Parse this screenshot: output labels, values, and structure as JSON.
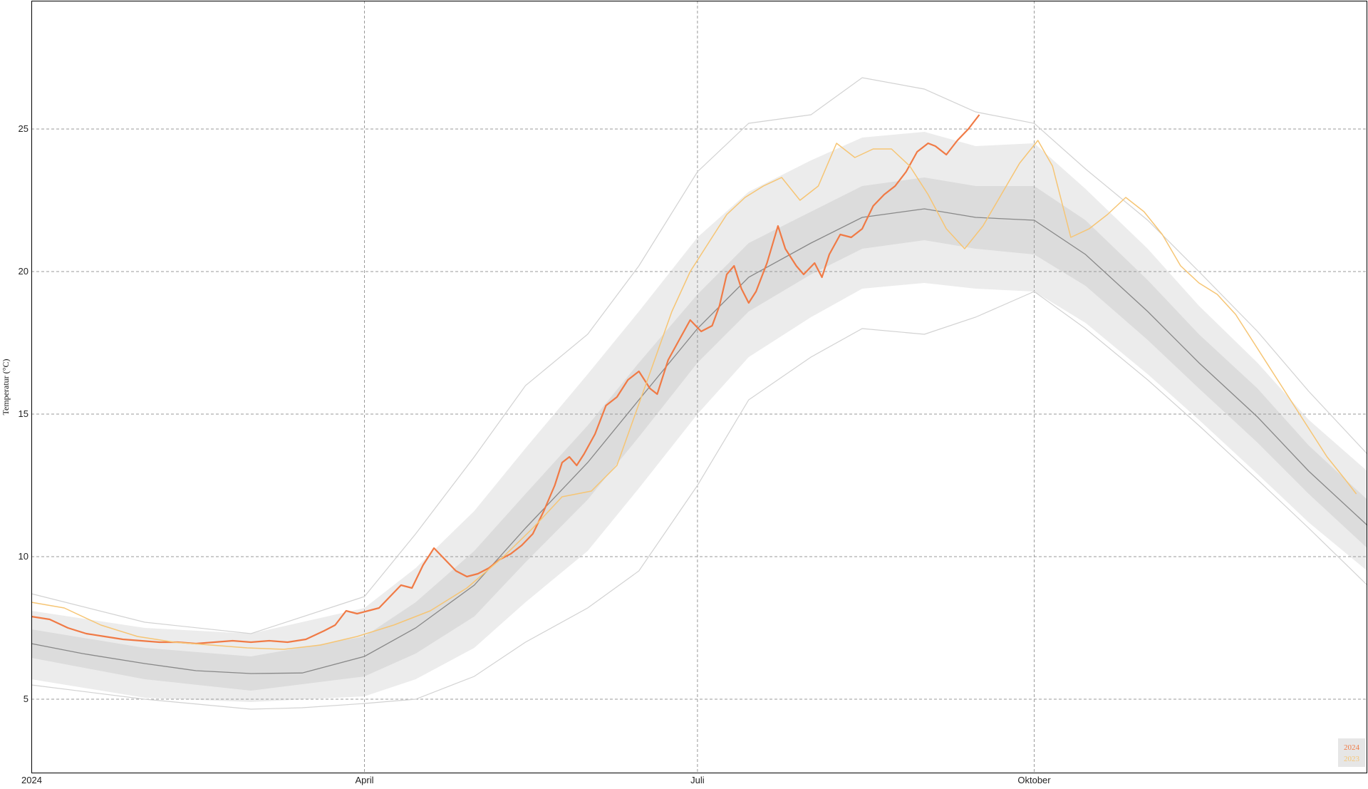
{
  "chart_data": {
    "type": "line",
    "ylabel": "Temperatur (°C)",
    "x_axis": {
      "type": "date",
      "range": [
        "2024-01-01",
        "2024-12-31"
      ],
      "ticks": [
        {
          "date": "2024-01-01",
          "label": "2024"
        },
        {
          "date": "2024-04-01",
          "label": "April"
        },
        {
          "date": "2024-07-01",
          "label": "Juli"
        },
        {
          "date": "2024-10-01",
          "label": "Oktober"
        }
      ]
    },
    "ylim": [
      2.4,
      29.5
    ],
    "yticks": [
      5,
      10,
      15,
      20,
      25
    ],
    "grid": true,
    "legend_position": "bottom-right",
    "colors": {
      "series_2024": "#f07a45",
      "series_2023": "#f6c574",
      "mean": "#888888",
      "band_outer": "#ececec",
      "band_inner": "#dcdcdc",
      "extremes": "#d2d2d2",
      "grid": "#9a9a9a"
    },
    "legend": [
      {
        "label": "2024",
        "color": "#f07a45"
      },
      {
        "label": "2023",
        "color": "#f6c574"
      }
    ],
    "series": [
      {
        "name": "2024",
        "role": "current",
        "points": [
          [
            "2024-01-01",
            7.9
          ],
          [
            "2024-01-06",
            7.8
          ],
          [
            "2024-01-11",
            7.5
          ],
          [
            "2024-01-16",
            7.3
          ],
          [
            "2024-01-21",
            7.2
          ],
          [
            "2024-01-26",
            7.1
          ],
          [
            "2024-01-31",
            7.05
          ],
          [
            "2024-02-05",
            7.0
          ],
          [
            "2024-02-10",
            7.0
          ],
          [
            "2024-02-15",
            6.95
          ],
          [
            "2024-02-20",
            7.0
          ],
          [
            "2024-02-25",
            7.05
          ],
          [
            "2024-03-01",
            7.0
          ],
          [
            "2024-03-06",
            7.05
          ],
          [
            "2024-03-11",
            7.0
          ],
          [
            "2024-03-16",
            7.1
          ],
          [
            "2024-03-21",
            7.4
          ],
          [
            "2024-03-24",
            7.6
          ],
          [
            "2024-03-27",
            8.1
          ],
          [
            "2024-03-30",
            8.0
          ],
          [
            "2024-04-02",
            8.1
          ],
          [
            "2024-04-05",
            8.2
          ],
          [
            "2024-04-08",
            8.6
          ],
          [
            "2024-04-11",
            9.0
          ],
          [
            "2024-04-14",
            8.9
          ],
          [
            "2024-04-17",
            9.7
          ],
          [
            "2024-04-20",
            10.3
          ],
          [
            "2024-04-23",
            9.9
          ],
          [
            "2024-04-26",
            9.5
          ],
          [
            "2024-04-29",
            9.3
          ],
          [
            "2024-05-02",
            9.4
          ],
          [
            "2024-05-05",
            9.6
          ],
          [
            "2024-05-08",
            9.9
          ],
          [
            "2024-05-11",
            10.1
          ],
          [
            "2024-05-14",
            10.4
          ],
          [
            "2024-05-17",
            10.8
          ],
          [
            "2024-05-20",
            11.6
          ],
          [
            "2024-05-23",
            12.5
          ],
          [
            "2024-05-25",
            13.3
          ],
          [
            "2024-05-27",
            13.5
          ],
          [
            "2024-05-29",
            13.2
          ],
          [
            "2024-05-31",
            13.6
          ],
          [
            "2024-06-03",
            14.3
          ],
          [
            "2024-06-06",
            15.3
          ],
          [
            "2024-06-09",
            15.6
          ],
          [
            "2024-06-12",
            16.2
          ],
          [
            "2024-06-15",
            16.5
          ],
          [
            "2024-06-18",
            15.9
          ],
          [
            "2024-06-20",
            15.7
          ],
          [
            "2024-06-23",
            16.9
          ],
          [
            "2024-06-26",
            17.6
          ],
          [
            "2024-06-29",
            18.3
          ],
          [
            "2024-07-02",
            17.9
          ],
          [
            "2024-07-05",
            18.1
          ],
          [
            "2024-07-07",
            18.8
          ],
          [
            "2024-07-09",
            19.9
          ],
          [
            "2024-07-11",
            20.2
          ],
          [
            "2024-07-13",
            19.4
          ],
          [
            "2024-07-15",
            18.9
          ],
          [
            "2024-07-17",
            19.3
          ],
          [
            "2024-07-20",
            20.3
          ],
          [
            "2024-07-23",
            21.6
          ],
          [
            "2024-07-25",
            20.8
          ],
          [
            "2024-07-28",
            20.2
          ],
          [
            "2024-07-30",
            19.9
          ],
          [
            "2024-08-02",
            20.3
          ],
          [
            "2024-08-04",
            19.8
          ],
          [
            "2024-08-06",
            20.6
          ],
          [
            "2024-08-09",
            21.3
          ],
          [
            "2024-08-12",
            21.2
          ],
          [
            "2024-08-15",
            21.5
          ],
          [
            "2024-08-18",
            22.3
          ],
          [
            "2024-08-21",
            22.7
          ],
          [
            "2024-08-24",
            23.0
          ],
          [
            "2024-08-27",
            23.5
          ],
          [
            "2024-08-30",
            24.2
          ],
          [
            "2024-09-02",
            24.5
          ],
          [
            "2024-09-04",
            24.4
          ],
          [
            "2024-09-07",
            24.1
          ],
          [
            "2024-09-10",
            24.6
          ],
          [
            "2024-09-13",
            25.0
          ],
          [
            "2024-09-16",
            25.5
          ]
        ]
      },
      {
        "name": "2023",
        "role": "previous",
        "points": [
          [
            "2024-01-01",
            8.4
          ],
          [
            "2024-01-10",
            8.2
          ],
          [
            "2024-01-20",
            7.6
          ],
          [
            "2024-01-30",
            7.2
          ],
          [
            "2024-02-09",
            7.0
          ],
          [
            "2024-02-19",
            6.9
          ],
          [
            "2024-02-29",
            6.8
          ],
          [
            "2024-03-10",
            6.75
          ],
          [
            "2024-03-20",
            6.9
          ],
          [
            "2024-03-30",
            7.2
          ],
          [
            "2024-04-09",
            7.6
          ],
          [
            "2024-04-19",
            8.1
          ],
          [
            "2024-04-29",
            8.9
          ],
          [
            "2024-05-09",
            10.0
          ],
          [
            "2024-05-17",
            11.0
          ],
          [
            "2024-05-25",
            12.1
          ],
          [
            "2024-06-02",
            12.3
          ],
          [
            "2024-06-09",
            13.2
          ],
          [
            "2024-06-14",
            15.0
          ],
          [
            "2024-06-19",
            16.8
          ],
          [
            "2024-06-24",
            18.6
          ],
          [
            "2024-06-29",
            20.0
          ],
          [
            "2024-07-04",
            21.0
          ],
          [
            "2024-07-09",
            22.0
          ],
          [
            "2024-07-14",
            22.6
          ],
          [
            "2024-07-19",
            23.0
          ],
          [
            "2024-07-24",
            23.3
          ],
          [
            "2024-07-29",
            22.5
          ],
          [
            "2024-08-03",
            23.0
          ],
          [
            "2024-08-08",
            24.5
          ],
          [
            "2024-08-13",
            24.0
          ],
          [
            "2024-08-18",
            24.3
          ],
          [
            "2024-08-23",
            24.3
          ],
          [
            "2024-08-28",
            23.7
          ],
          [
            "2024-09-02",
            22.7
          ],
          [
            "2024-09-07",
            21.5
          ],
          [
            "2024-09-12",
            20.8
          ],
          [
            "2024-09-17",
            21.6
          ],
          [
            "2024-09-22",
            22.7
          ],
          [
            "2024-09-27",
            23.8
          ],
          [
            "2024-10-02",
            24.6
          ],
          [
            "2024-10-06",
            23.7
          ],
          [
            "2024-10-11",
            21.2
          ],
          [
            "2024-10-16",
            21.5
          ],
          [
            "2024-10-21",
            22.0
          ],
          [
            "2024-10-26",
            22.6
          ],
          [
            "2024-10-31",
            22.1
          ],
          [
            "2024-11-05",
            21.3
          ],
          [
            "2024-11-10",
            20.2
          ],
          [
            "2024-11-15",
            19.6
          ],
          [
            "2024-11-20",
            19.2
          ],
          [
            "2024-11-25",
            18.5
          ],
          [
            "2024-11-30",
            17.5
          ],
          [
            "2024-12-05",
            16.5
          ],
          [
            "2024-12-10",
            15.5
          ],
          [
            "2024-12-15",
            14.5
          ],
          [
            "2024-12-20",
            13.5
          ],
          [
            "2024-12-25",
            12.7
          ],
          [
            "2024-12-28",
            12.2
          ]
        ]
      }
    ],
    "climatology": {
      "mean": [
        [
          "2024-01-01",
          6.95
        ],
        [
          "2024-01-15",
          6.6
        ],
        [
          "2024-02-01",
          6.25
        ],
        [
          "2024-02-15",
          6.0
        ],
        [
          "2024-03-01",
          5.9
        ],
        [
          "2024-03-15",
          5.92
        ],
        [
          "2024-04-01",
          6.5
        ],
        [
          "2024-04-15",
          7.5
        ],
        [
          "2024-05-01",
          9.0
        ],
        [
          "2024-05-15",
          11.0
        ],
        [
          "2024-06-01",
          13.3
        ],
        [
          "2024-06-15",
          15.5
        ],
        [
          "2024-07-01",
          18.0
        ],
        [
          "2024-07-15",
          19.8
        ],
        [
          "2024-08-01",
          21.0
        ],
        [
          "2024-08-15",
          21.9
        ],
        [
          "2024-09-01",
          22.2
        ],
        [
          "2024-09-15",
          21.9
        ],
        [
          "2024-10-01",
          21.8
        ],
        [
          "2024-10-15",
          20.6
        ],
        [
          "2024-11-01",
          18.6
        ],
        [
          "2024-11-15",
          16.8
        ],
        [
          "2024-12-01",
          14.9
        ],
        [
          "2024-12-15",
          13.0
        ],
        [
          "2024-12-31",
          11.1
        ]
      ],
      "inner_band": [
        [
          "2024-01-01",
          6.45,
          7.45
        ],
        [
          "2024-02-01",
          5.7,
          6.8
        ],
        [
          "2024-03-01",
          5.3,
          6.5
        ],
        [
          "2024-04-01",
          5.8,
          7.2
        ],
        [
          "2024-04-15",
          6.6,
          8.4
        ],
        [
          "2024-05-01",
          7.9,
          10.2
        ],
        [
          "2024-05-15",
          9.8,
          12.2
        ],
        [
          "2024-06-01",
          12.0,
          14.6
        ],
        [
          "2024-06-15",
          14.2,
          16.8
        ],
        [
          "2024-07-01",
          16.8,
          19.2
        ],
        [
          "2024-07-15",
          18.6,
          21.0
        ],
        [
          "2024-08-01",
          19.9,
          22.1
        ],
        [
          "2024-08-15",
          20.8,
          23.0
        ],
        [
          "2024-09-01",
          21.1,
          23.3
        ],
        [
          "2024-09-15",
          20.8,
          23.0
        ],
        [
          "2024-10-01",
          20.6,
          23.0
        ],
        [
          "2024-10-15",
          19.5,
          21.8
        ],
        [
          "2024-11-01",
          17.6,
          19.7
        ],
        [
          "2024-11-15",
          15.9,
          17.8
        ],
        [
          "2024-12-01",
          14.0,
          15.9
        ],
        [
          "2024-12-15",
          12.2,
          13.9
        ],
        [
          "2024-12-31",
          10.3,
          12.0
        ]
      ],
      "outer_band": [
        [
          "2024-01-01",
          5.7,
          8.1
        ],
        [
          "2024-02-01",
          5.05,
          7.5
        ],
        [
          "2024-03-01",
          4.9,
          7.3
        ],
        [
          "2024-04-01",
          5.1,
          8.2
        ],
        [
          "2024-04-15",
          5.7,
          9.6
        ],
        [
          "2024-05-01",
          6.8,
          11.6
        ],
        [
          "2024-05-15",
          8.4,
          13.8
        ],
        [
          "2024-06-01",
          10.2,
          16.4
        ],
        [
          "2024-06-15",
          12.4,
          18.6
        ],
        [
          "2024-07-01",
          15.0,
          21.2
        ],
        [
          "2024-07-15",
          17.0,
          22.8
        ],
        [
          "2024-08-01",
          18.4,
          23.9
        ],
        [
          "2024-08-15",
          19.4,
          24.7
        ],
        [
          "2024-09-01",
          19.6,
          24.9
        ],
        [
          "2024-09-15",
          19.4,
          24.4
        ],
        [
          "2024-10-01",
          19.3,
          24.5
        ],
        [
          "2024-10-15",
          18.2,
          22.9
        ],
        [
          "2024-11-01",
          16.4,
          20.8
        ],
        [
          "2024-11-15",
          14.8,
          18.8
        ],
        [
          "2024-12-01",
          12.9,
          16.8
        ],
        [
          "2024-12-15",
          11.2,
          14.8
        ],
        [
          "2024-12-31",
          9.5,
          13.0
        ]
      ],
      "record_low": [
        [
          "2024-01-01",
          5.5
        ],
        [
          "2024-02-01",
          5.0
        ],
        [
          "2024-03-01",
          4.65
        ],
        [
          "2024-03-15",
          4.7
        ],
        [
          "2024-04-01",
          4.85
        ],
        [
          "2024-04-15",
          5.0
        ],
        [
          "2024-05-01",
          5.8
        ],
        [
          "2024-05-15",
          7.0
        ],
        [
          "2024-06-01",
          8.2
        ],
        [
          "2024-06-15",
          9.5
        ],
        [
          "2024-07-01",
          12.5
        ],
        [
          "2024-07-15",
          15.5
        ],
        [
          "2024-08-01",
          17.0
        ],
        [
          "2024-08-15",
          18.0
        ],
        [
          "2024-09-01",
          17.8
        ],
        [
          "2024-09-15",
          18.4
        ],
        [
          "2024-10-01",
          19.3
        ],
        [
          "2024-10-15",
          18.0
        ],
        [
          "2024-11-01",
          16.2
        ],
        [
          "2024-11-15",
          14.6
        ],
        [
          "2024-12-01",
          12.7
        ],
        [
          "2024-12-15",
          11.0
        ],
        [
          "2024-12-31",
          9.0
        ]
      ],
      "record_high": [
        [
          "2024-01-01",
          8.7
        ],
        [
          "2024-02-01",
          7.7
        ],
        [
          "2024-03-01",
          7.3
        ],
        [
          "2024-04-01",
          8.6
        ],
        [
          "2024-04-15",
          10.8
        ],
        [
          "2024-05-01",
          13.5
        ],
        [
          "2024-05-15",
          16.0
        ],
        [
          "2024-06-01",
          17.8
        ],
        [
          "2024-06-15",
          20.2
        ],
        [
          "2024-07-01",
          23.5
        ],
        [
          "2024-07-15",
          25.2
        ],
        [
          "2024-08-01",
          25.5
        ],
        [
          "2024-08-15",
          26.8
        ],
        [
          "2024-09-01",
          26.4
        ],
        [
          "2024-09-15",
          25.6
        ],
        [
          "2024-10-01",
          25.2
        ],
        [
          "2024-10-15",
          23.6
        ],
        [
          "2024-11-01",
          21.8
        ],
        [
          "2024-11-15",
          20.0
        ],
        [
          "2024-12-01",
          17.9
        ],
        [
          "2024-12-15",
          15.8
        ],
        [
          "2024-12-31",
          13.6
        ]
      ]
    }
  }
}
